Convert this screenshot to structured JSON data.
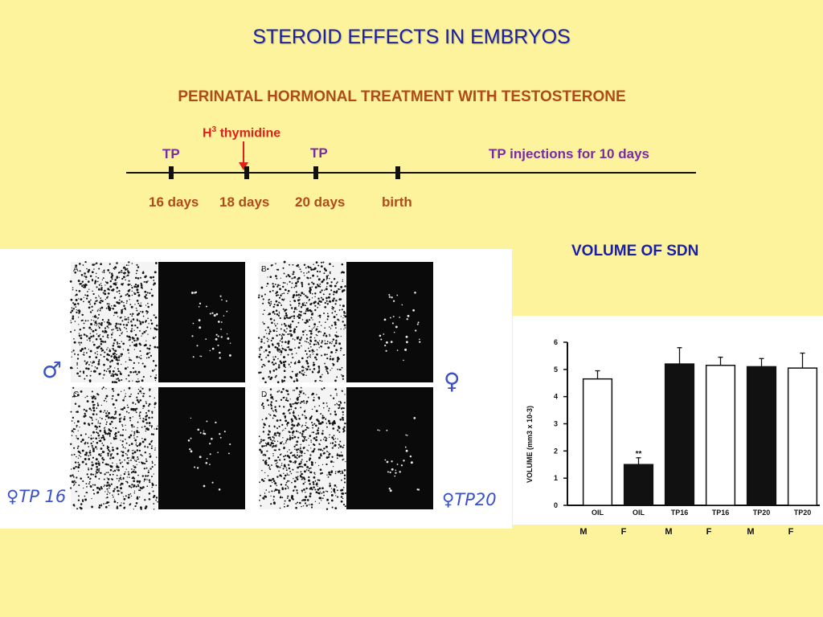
{
  "slide": {
    "title": "STEROID EFFECTS IN EMBRYOS",
    "subtitle": "PERINATAL HORMONAL TREATMENT WITH TESTOSTERONE"
  },
  "timeline": {
    "h3_base": "H",
    "h3_sup": "3",
    "h3_rest": " thymidine",
    "tp_1": "TP",
    "tp_2": "TP",
    "tp_injections": "TP injections for 10 days",
    "ticks": [
      "16 days",
      "18 days",
      "20 days",
      "birth"
    ]
  },
  "micrographs": {
    "panel_letters": [
      "A",
      "B",
      "C",
      "D"
    ],
    "annotations": {
      "male": "♂",
      "female": "♀",
      "female_tp16": "♀TP 16",
      "female_tp20": "♀TP20"
    }
  },
  "chart_heading": "VOLUME OF SDN",
  "chart_data": {
    "type": "bar",
    "categories": [
      "OIL",
      "OIL",
      "TP16",
      "TP16",
      "TP20",
      "TP20"
    ],
    "sex_labels": [
      "M",
      "F",
      "M",
      "F",
      "M",
      "F"
    ],
    "values": [
      4.65,
      1.5,
      5.2,
      5.15,
      5.1,
      5.05
    ],
    "errors": [
      0.3,
      0.25,
      0.6,
      0.3,
      0.3,
      0.55
    ],
    "bar_fill": [
      "white",
      "black",
      "black",
      "white",
      "black",
      "white"
    ],
    "significance": [
      "",
      "**",
      "",
      "",
      "",
      ""
    ],
    "ylabel": "VOLUME (mm3 x 10-3)",
    "ylim": [
      0,
      6
    ],
    "yticks": [
      "0",
      "1",
      "2",
      "3",
      "4",
      "5",
      "6"
    ]
  },
  "colors": {
    "background": "#fdf39c",
    "title_blue": "#1b1fa8",
    "orange": "#b04a1a",
    "purple": "#7a2aa6",
    "red": "#e0201b",
    "handwriting_blue": "#3a52c8"
  }
}
